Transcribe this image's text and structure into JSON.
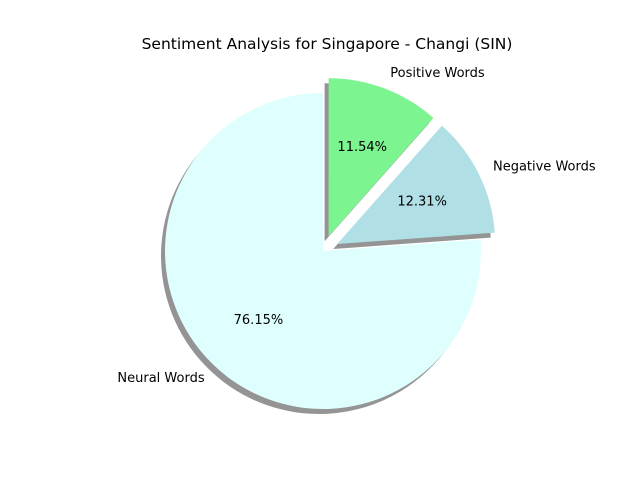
{
  "chart_data": {
    "type": "pie",
    "title": "Sentiment Analysis for Singapore - Changi (SIN)",
    "start_angle_deg": 90,
    "direction": "clockwise",
    "shadow": true,
    "slices": [
      {
        "label": "Positive Words",
        "value": 11.54,
        "pct_label": "11.54%",
        "color": "#7cf48f",
        "exploded": true
      },
      {
        "label": "Negative Words",
        "value": 12.31,
        "pct_label": "12.31%",
        "color": "#b0dfe5",
        "exploded": true
      },
      {
        "label": "Neural Words",
        "value": 76.15,
        "pct_label": "76.15%",
        "color": "#dfffff",
        "exploded": false
      }
    ]
  }
}
